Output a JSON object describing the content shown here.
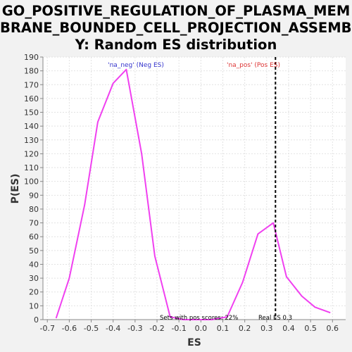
{
  "chart_data": {
    "type": "line",
    "title_lines": [
      "GO_POSITIVE_REGULATION_OF_PLASMA_MEM",
      "BRANE_BOUNDED_CELL_PROJECTION_ASSEMBL",
      "Y: Random ES distribution"
    ],
    "xlabel": "ES",
    "ylabel": "P(ES)",
    "xlim": [
      -0.72,
      0.66
    ],
    "ylim": [
      0,
      190
    ],
    "x_ticks": [
      "-0.7",
      "-0.6",
      "-0.5",
      "-0.4",
      "-0.3",
      "-0.2",
      "-0.1",
      "0.0",
      "0.1",
      "0.2",
      "0.3",
      "0.4",
      "0.5",
      "0.6"
    ],
    "y_ticks": [
      "0",
      "10",
      "20",
      "30",
      "40",
      "50",
      "60",
      "70",
      "80",
      "90",
      "100",
      "110",
      "120",
      "130",
      "140",
      "150",
      "160",
      "170",
      "180",
      "190"
    ],
    "grid": true,
    "series": [
      {
        "color": "#f040f0",
        "x": [
          -0.66,
          -0.6,
          -0.53,
          -0.47,
          -0.4,
          -0.34,
          -0.27,
          -0.21,
          -0.14,
          -0.08,
          -0.01,
          0.05,
          0.12,
          0.19,
          0.26,
          0.33,
          0.39,
          0.46,
          0.52,
          0.59
        ],
        "y": [
          1,
          30,
          83,
          143,
          171,
          181,
          120,
          46,
          2,
          0,
          0,
          0,
          2,
          27,
          62,
          70,
          31,
          17,
          9,
          5
        ]
      }
    ],
    "annotations": {
      "neg_label": "'na_neg' (Neg ES)",
      "pos_label": "'na_pos' (Pos ES)",
      "sets_pos": "Sets with pos scores: 22%",
      "real_es": "Real ES 0.3"
    },
    "real_es_value": 0.34,
    "colors": {
      "neg_label": "#3333cc",
      "pos_label": "#dd3333",
      "real_es_line": "#000000"
    }
  }
}
